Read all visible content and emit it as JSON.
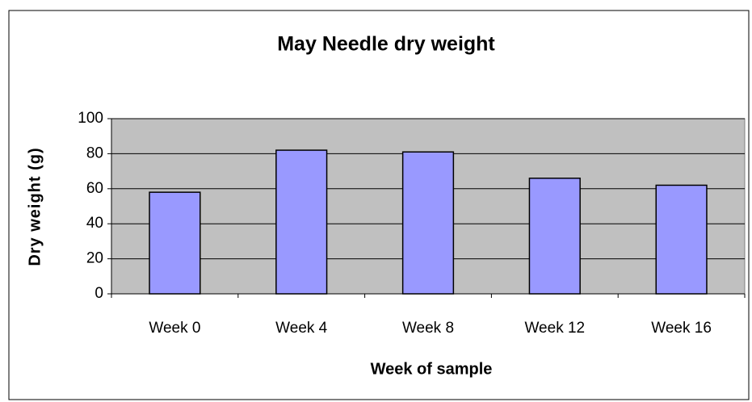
{
  "chart_data": {
    "type": "bar",
    "title": "May Needle dry weight",
    "xlabel": "Week of sample",
    "ylabel": "Dry weight (g)",
    "categories": [
      "Week 0",
      "Week 4",
      "Week 8",
      "Week 12",
      "Week 16"
    ],
    "values": [
      58,
      82,
      81,
      66,
      62
    ],
    "color": "#9999ff",
    "ylim": [
      0,
      100
    ],
    "yticks": [
      0,
      20,
      40,
      60,
      80,
      100
    ],
    "grid": true
  }
}
